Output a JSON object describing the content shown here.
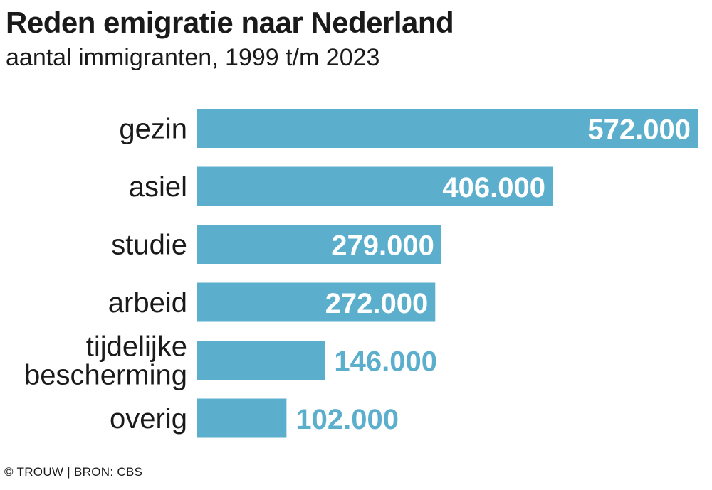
{
  "title": "Reden emigratie naar Nederland",
  "subtitle": "aantal immigranten, 1999 t/m 2023",
  "footer": "© TROUW | BRON: CBS",
  "colors": {
    "bar": "#5bafcd",
    "label_inside": "#ffffff",
    "label_outside": "#5bafcd",
    "category_text": "#1a1a1a"
  },
  "chart_data": {
    "type": "bar",
    "orientation": "horizontal",
    "categories": [
      [
        "gezin"
      ],
      [
        "asiel"
      ],
      [
        "studie"
      ],
      [
        "arbeid"
      ],
      [
        "tijdelijke",
        "bescherming"
      ],
      [
        "overig"
      ]
    ],
    "values": [
      572000,
      406000,
      279000,
      272000,
      146000,
      102000
    ],
    "value_labels": [
      "572.000",
      "406.000",
      "279.000",
      "272.000",
      "146.000",
      "102.000"
    ],
    "grid": false,
    "legend": "none"
  }
}
